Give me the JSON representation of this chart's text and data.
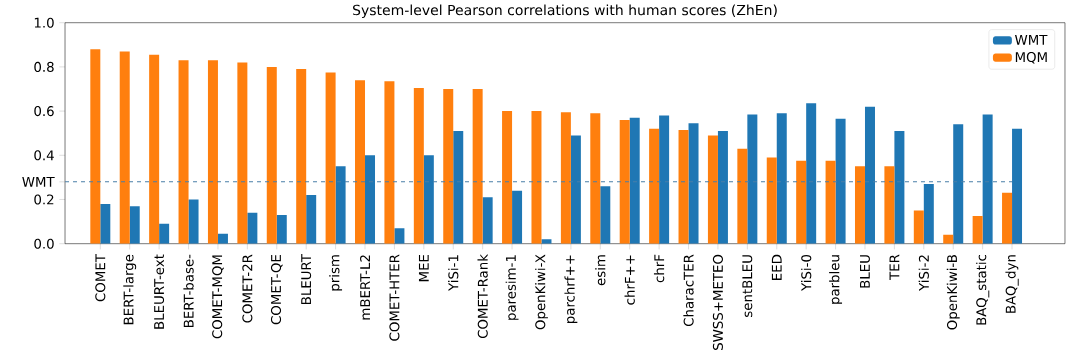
{
  "chart_data": {
    "type": "bar",
    "title": "System-level Pearson correlations with human scores (ZhEn)",
    "categories": [
      "COMET",
      "BERT-large",
      "BLEURT-ext",
      "BERT-base-",
      "COMET-MQM",
      "COMET-2R",
      "COMET-QE",
      "BLEURT",
      "prism",
      "mBERT-L2",
      "COMET-HTER",
      "MEE",
      "YiSi-1",
      "COMET-Rank",
      "paresim-1",
      "OpenKiwi-X",
      "parchrf++",
      "esim",
      "chrF++",
      "chrF",
      "CharacTER",
      "SWSS+METEO",
      "sentBLEU",
      "EED",
      "YiSi-0",
      "parbleu",
      "BLEU",
      "TER",
      "YiSi-2",
      "OpenKiwi-B",
      "BAQ_static",
      "BAQ_dyn"
    ],
    "series": [
      {
        "name": "WMT",
        "color": "#1f77b4",
        "values": [
          0.18,
          0.17,
          0.09,
          0.2,
          0.045,
          0.14,
          0.13,
          0.22,
          0.35,
          0.4,
          0.07,
          0.4,
          0.51,
          0.21,
          0.24,
          0.02,
          0.49,
          0.26,
          0.57,
          0.58,
          0.545,
          0.51,
          0.585,
          0.59,
          0.635,
          0.565,
          0.62,
          0.51,
          0.27,
          0.54,
          0.585,
          0.52
        ]
      },
      {
        "name": "MQM",
        "color": "#ff7f0e",
        "values": [
          0.88,
          0.87,
          0.855,
          0.83,
          0.83,
          0.82,
          0.8,
          0.79,
          0.775,
          0.74,
          0.735,
          0.705,
          0.7,
          0.7,
          0.6,
          0.6,
          0.595,
          0.59,
          0.56,
          0.52,
          0.515,
          0.49,
          0.43,
          0.39,
          0.375,
          0.375,
          0.35,
          0.35,
          0.15,
          0.04,
          0.125,
          0.23
        ]
      }
    ],
    "ylim": [
      0,
      1.0
    ],
    "yticks": [
      {
        "value": 0,
        "label": "0.0"
      },
      0.2,
      0.4,
      0.6,
      0.8,
      {
        "value": 1.0,
        "label": "1.0"
      }
    ],
    "ref_lines": [
      {
        "axis": "y",
        "value": 0.28,
        "label": "WMT",
        "color": "#4a7fa8",
        "line_style": "dashed"
      }
    ],
    "legend": "top right",
    "grid": false
  }
}
